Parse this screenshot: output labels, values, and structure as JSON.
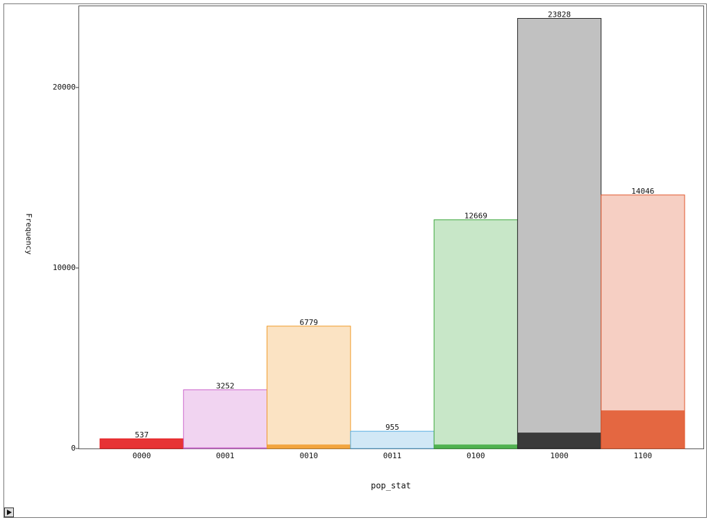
{
  "chart_data": {
    "type": "bar",
    "x_label": "pop_stat",
    "y_label": "Frequency",
    "categories": [
      "0000",
      "0001",
      "0010",
      "0011",
      "0100",
      "1000",
      "1100"
    ],
    "values": [
      537,
      3252,
      6779,
      955,
      12669,
      23828,
      14046
    ],
    "highlight_values": [
      537,
      60,
      220,
      0,
      220,
      880,
      2110
    ],
    "colors": [
      "#e41a1c",
      "#cc66cc",
      "#f09a28",
      "#5aaee0",
      "#3ca83c",
      "#222222",
      "#e0552a"
    ],
    "ylim": [
      0,
      24540
    ],
    "yticks": [
      0,
      10000,
      20000
    ]
  }
}
